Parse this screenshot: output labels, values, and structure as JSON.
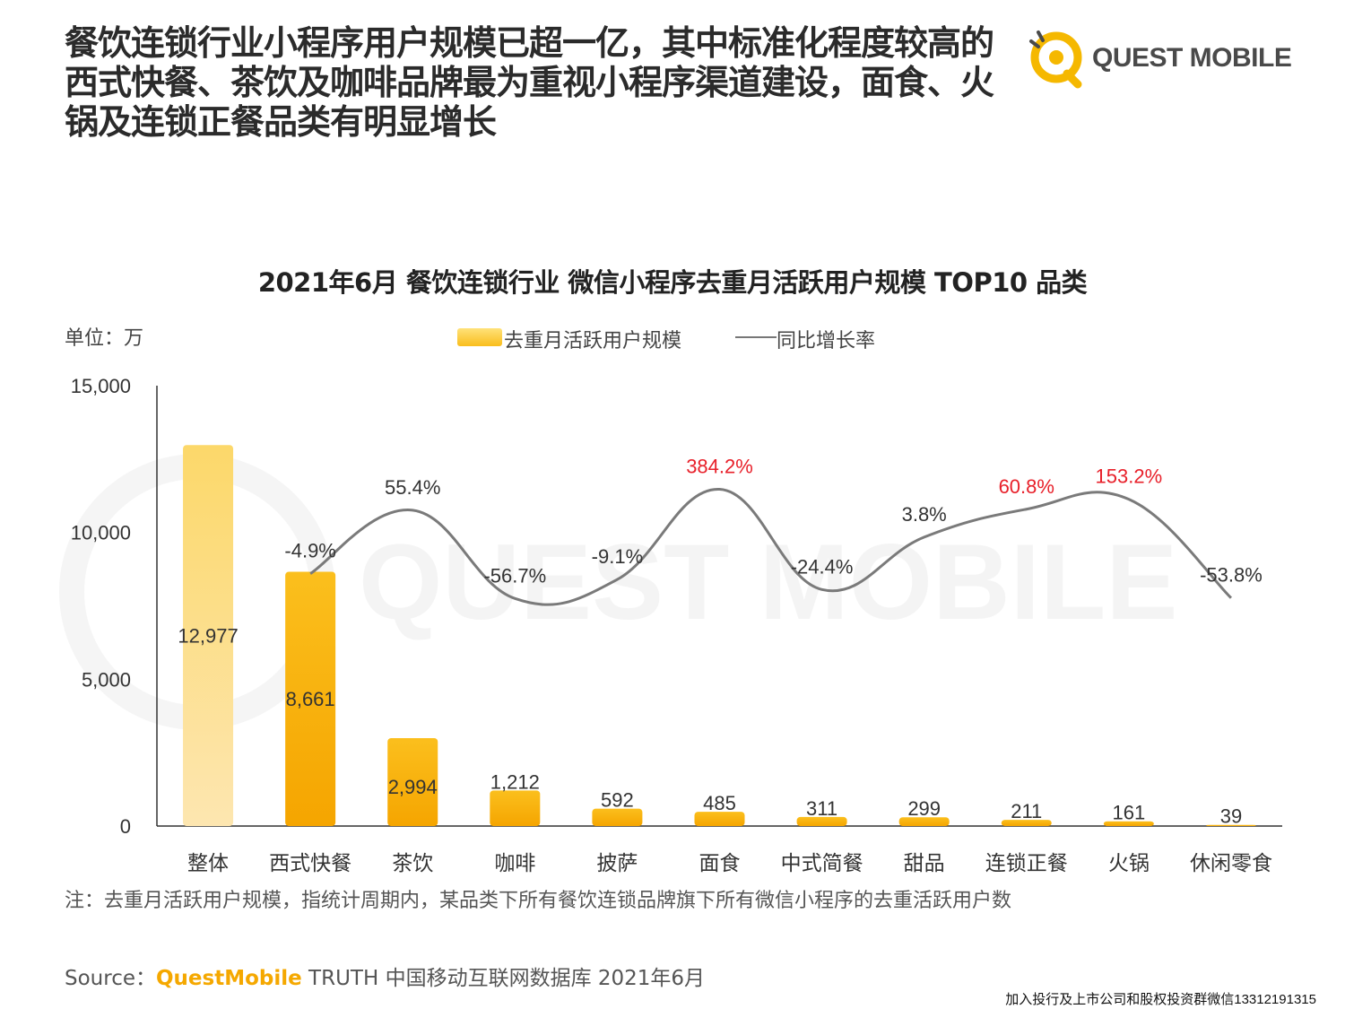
{
  "headline": {
    "line1": "餐饮连锁行业小程序用户规模已超一亿，其中标准化程度较高的",
    "line2": "西式快餐、茶饮及咖啡品牌最为重视小程序渠道建设，面食、火",
    "line3": "锅及连锁正餐品类有明显增长"
  },
  "logo": {
    "text": "QUEST MOBILE",
    "accent": "#f5b800"
  },
  "watermark": "QUEST MOBILE",
  "unit_label": "单位：万",
  "legend": {
    "bar_label": "去重月活跃用户规模",
    "line_label": "同比增长率"
  },
  "chart_data": {
    "type": "bar",
    "title": "2021年6月 餐饮连锁行业 微信小程序去重月活跃用户规模 TOP10 品类",
    "categories": [
      "整体",
      "西式快餐",
      "茶饮",
      "咖啡",
      "披萨",
      "面食",
      "中式简餐",
      "甜品",
      "连锁正餐",
      "火锅",
      "休闲零食"
    ],
    "series": [
      {
        "name": "去重月活跃用户规模",
        "type": "bar",
        "values": [
          12977,
          8661,
          2994,
          1212,
          592,
          485,
          311,
          299,
          211,
          161,
          39
        ],
        "labels": [
          "12,977",
          "8,661",
          "2,994",
          "1,212",
          "592",
          "485",
          "311",
          "299",
          "211",
          "161",
          "39"
        ]
      },
      {
        "name": "同比增长率",
        "type": "line",
        "axis": "secondary (not shown)",
        "values_pct": [
          null,
          -4.9,
          55.4,
          -56.7,
          -9.1,
          384.2,
          -24.4,
          3.8,
          60.8,
          153.2,
          -53.8
        ],
        "labels": [
          "",
          "-4.9%",
          "55.4%",
          "-56.7%",
          "-9.1%",
          "384.2%",
          "-24.4%",
          "3.8%",
          "60.8%",
          "153.2%",
          "-53.8%"
        ],
        "highlighted": [
          false,
          false,
          false,
          false,
          false,
          true,
          false,
          false,
          true,
          true,
          false
        ]
      }
    ],
    "ylim": [
      0,
      15000
    ],
    "yticks": [
      0,
      5000,
      10000,
      15000
    ],
    "ytick_labels": [
      "0",
      "5,000",
      "10,000",
      "15,000"
    ],
    "grid": false,
    "legend_position": "top-center",
    "colors": {
      "bar_top": "#fbbf1d",
      "bar_bottom": "#f5a500",
      "first_bar_top": "#fcd86a",
      "first_bar_bottom": "#fde6b0",
      "line": "#7a7a7a",
      "highlight": "#e8202a",
      "axis": "#333333"
    }
  },
  "note": "注：去重月活跃用户规模，指统计周期内，某品类下所有餐饮连锁品牌旗下所有微信小程序的去重活跃用户数",
  "source": {
    "prefix": "Source：",
    "brand": "QuestMobile",
    "rest": " TRUTH 中国移动互联网数据库 2021年6月"
  },
  "footer_promo": "加入投行及上市公司和股权投资群微信13312191315"
}
